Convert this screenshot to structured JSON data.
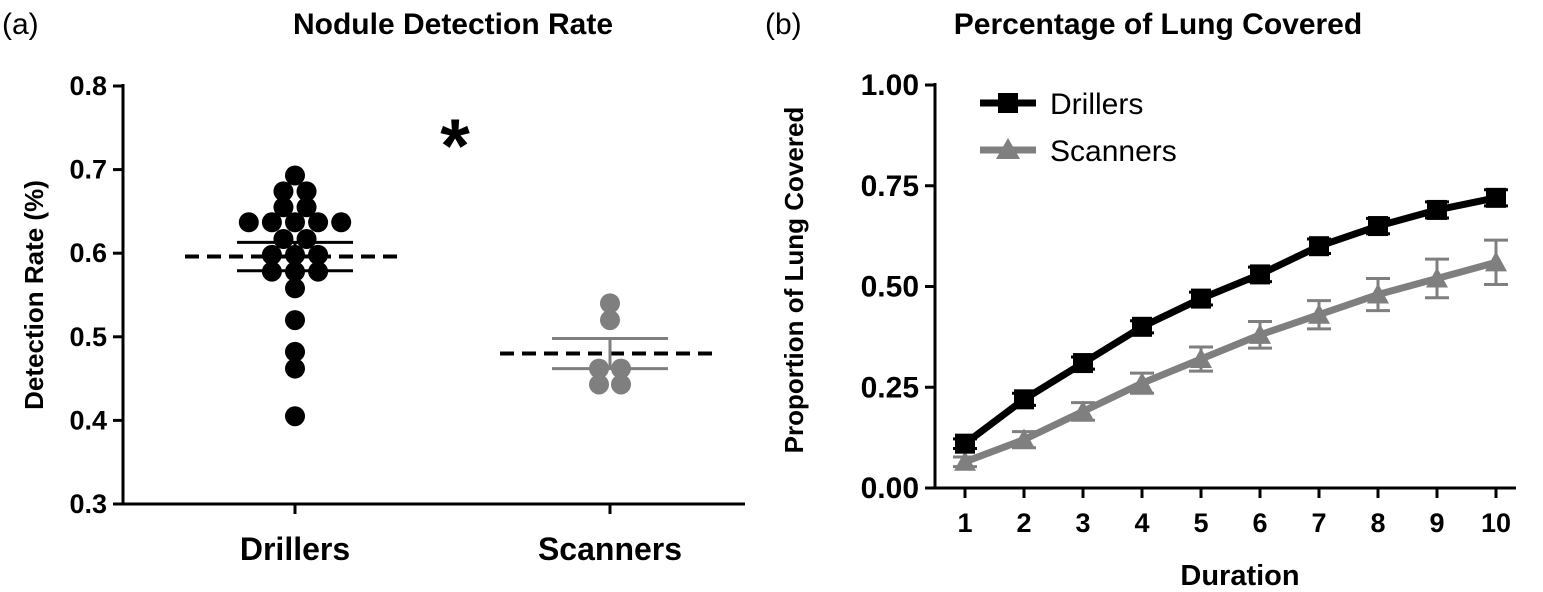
{
  "chart_data": [
    {
      "panel_label": "(a)",
      "type": "scatter",
      "title": "Nodule Detection Rate",
      "xlabel": "",
      "ylabel": "Detection Rate (%)",
      "ylim": [
        0.3,
        0.8
      ],
      "yticks": [
        "0.3",
        "0.4",
        "0.5",
        "0.6",
        "0.7",
        "0.8"
      ],
      "categories": [
        "Drillers",
        "Scanners"
      ],
      "annotation": "*",
      "series": [
        {
          "name": "Drillers",
          "color": "#000000",
          "values": [
            0.693,
            0.674,
            0.674,
            0.655,
            0.655,
            0.637,
            0.637,
            0.637,
            0.637,
            0.637,
            0.617,
            0.617,
            0.598,
            0.598,
            0.598,
            0.578,
            0.578,
            0.578,
            0.558,
            0.52,
            0.482,
            0.462,
            0.405
          ],
          "mean": 0.596,
          "sem": 0.017
        },
        {
          "name": "Scanners",
          "color": "#7f7f7f",
          "values": [
            0.54,
            0.52,
            0.462,
            0.462,
            0.443,
            0.443
          ],
          "mean": 0.48,
          "sem": 0.018
        }
      ]
    },
    {
      "panel_label": "(b)",
      "type": "line",
      "title": "Percentage of Lung Covered",
      "xlabel": "Duration",
      "ylabel": "Proportion of Lung Covered",
      "ylim": [
        0,
        1
      ],
      "yticks": [
        "0.00",
        "0.25",
        "0.50",
        "0.75",
        "1.00"
      ],
      "x": [
        1,
        2,
        3,
        4,
        5,
        6,
        7,
        8,
        9,
        10
      ],
      "xticks": [
        "1",
        "2",
        "3",
        "4",
        "5",
        "6",
        "7",
        "8",
        "9",
        "10"
      ],
      "legend_position": "top-left",
      "series": [
        {
          "name": "Drillers",
          "color": "#000000",
          "marker": "square",
          "values": [
            0.11,
            0.22,
            0.31,
            0.4,
            0.47,
            0.53,
            0.6,
            0.65,
            0.69,
            0.72
          ],
          "errors": [
            0.012,
            0.015,
            0.015,
            0.015,
            0.016,
            0.018,
            0.018,
            0.019,
            0.02,
            0.02
          ]
        },
        {
          "name": "Scanners",
          "color": "#7f7f7f",
          "marker": "triangle",
          "values": [
            0.065,
            0.12,
            0.19,
            0.26,
            0.32,
            0.38,
            0.43,
            0.48,
            0.52,
            0.56
          ],
          "errors": [
            0.012,
            0.02,
            0.022,
            0.025,
            0.03,
            0.033,
            0.035,
            0.04,
            0.048,
            0.055
          ]
        }
      ]
    }
  ]
}
